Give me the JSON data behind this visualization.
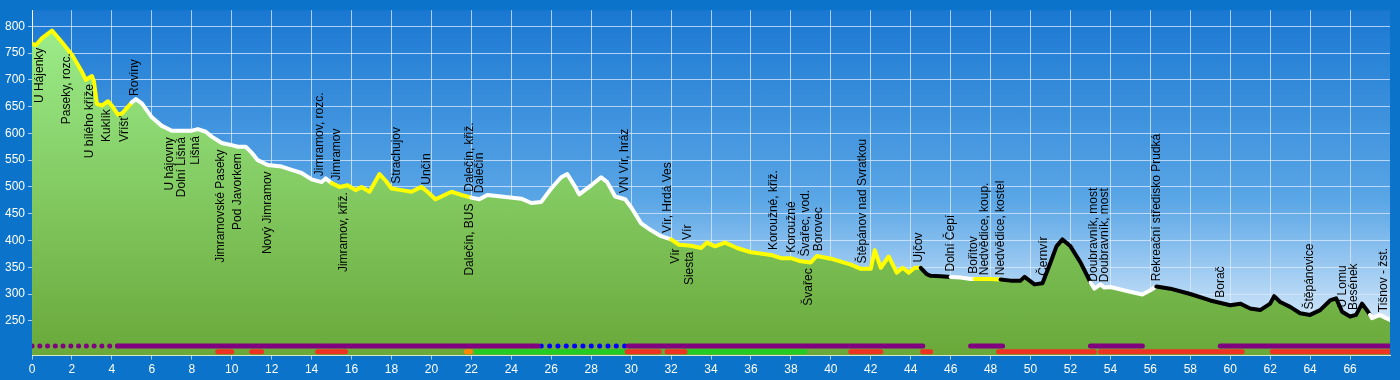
{
  "chart_data": {
    "type": "area",
    "xlim": [
      0,
      68
    ],
    "xticks": [
      0,
      2,
      4,
      6,
      8,
      10,
      12,
      14,
      16,
      18,
      20,
      22,
      24,
      26,
      28,
      30,
      32,
      34,
      36,
      38,
      40,
      42,
      44,
      46,
      48,
      50,
      52,
      54,
      56,
      58,
      60,
      62,
      64,
      66
    ],
    "ylim": [
      185,
      830
    ],
    "yticks": [
      250,
      300,
      350,
      400,
      450,
      500,
      550,
      600,
      650,
      700,
      750,
      800
    ],
    "grid": true,
    "legend": false,
    "series": [
      {
        "color": "#6aa83a",
        "x": [
          0,
          0.2,
          0.5,
          1.0,
          1.5,
          2.0,
          2.5,
          2.7,
          3.0,
          3.1,
          3.25,
          3.5,
          3.8,
          4.0,
          4.3,
          4.5,
          5.0,
          5.2,
          5.5,
          6.0,
          6.5,
          7.0,
          8.0,
          8.3,
          8.7,
          9.0,
          9.5,
          10.0,
          10.3,
          10.7,
          11.0,
          11.3,
          11.8,
          12.5,
          13.0,
          13.5,
          14.0,
          14.5,
          14.7,
          15.0,
          15.4,
          15.8,
          16.2,
          16.5,
          16.9,
          17.4,
          17.7,
          18.0,
          18.5,
          19.0,
          19.5,
          19.8,
          20.2,
          20.5,
          21.0,
          21.5,
          22.0,
          22.4,
          22.8,
          23.5,
          24.5,
          25.0,
          25.5,
          26.0,
          26.5,
          26.8,
          27.2,
          27.4,
          28.0,
          28.5,
          28.8,
          29.2,
          29.7,
          30.0,
          30.5,
          31.0,
          31.5,
          32.0,
          32.4,
          33.0,
          33.5,
          33.8,
          34.2,
          34.7,
          35.3,
          36.0,
          37.0,
          37.5,
          38.0,
          38.5,
          39.0,
          39.3,
          40.0,
          41.0,
          41.5,
          42.0,
          42.2,
          42.5,
          42.9,
          43.3,
          43.6,
          43.9,
          44.2,
          44.5,
          44.8,
          45.0,
          45.5,
          46.0,
          46.5,
          47.0,
          47.2,
          48.0,
          48.5,
          49.0,
          49.5,
          49.7,
          50.2,
          50.6,
          51.0,
          51.3,
          51.6,
          52.0,
          52.5,
          53.0,
          53.2,
          53.5,
          53.7,
          54.0,
          55.0,
          55.6,
          56.0,
          56.3,
          57.0,
          58.0,
          59.0,
          60.0,
          60.5,
          61.0,
          61.5,
          62.0,
          62.2,
          62.5,
          63.0,
          63.5,
          64.0,
          64.5,
          65.0,
          65.3,
          65.6,
          66.0,
          66.3,
          66.6,
          66.9,
          67.0,
          67.1,
          67.5,
          67.8,
          68
        ],
        "values": [
          767,
          765,
          778,
          792,
          770,
          747,
          715,
          700,
          707,
          697,
          655,
          652,
          660,
          652,
          635,
          637,
          658,
          664,
          656,
          630,
          614,
          605,
          605,
          608,
          603,
          594,
          582,
          578,
          575,
          575,
          564,
          550,
          541,
          538,
          532,
          526,
          514,
          509,
          516,
          507,
          500,
          503,
          494,
          500,
          491,
          524,
          512,
          497,
          494,
          491,
          500,
          491,
          477,
          482,
          491,
          485,
          480,
          477,
          485,
          482,
          478,
          470,
          472,
          497,
          518,
          524,
          500,
          486,
          503,
          518,
          509,
          482,
          477,
          462,
          432,
          419,
          408,
          402,
          392,
          390,
          386,
          396,
          389,
          396,
          386,
          378,
          373,
          367,
          367,
          361,
          359,
          371,
          366,
          355,
          347,
          347,
          382,
          349,
          370,
          340,
          349,
          340,
          349,
          349,
          337,
          334,
          333,
          332,
          331,
          328,
          328,
          328,
          327,
          325,
          325,
          332,
          318,
          320,
          359,
          389,
          402,
          389,
          359,
          322,
          310,
          318,
          312,
          313,
          304,
          299,
          307,
          314,
          310,
          300,
          288,
          279,
          282,
          273,
          270,
          282,
          296,
          285,
          276,
          264,
          261,
          270,
          288,
          292,
          267,
          258,
          261,
          282,
          267,
          261,
          255,
          261,
          255,
          252
        ],
        "colors": [
          "#ffff00",
          "#ffff00",
          "#ffff00",
          "#ffff00",
          "#ffff00",
          "#ffff00",
          "#ffff00",
          "#ffff00",
          "#ffff00",
          "#ffff00",
          "#ffff00",
          "#ffff00",
          "#ffff00",
          "#ffff00",
          "#ffff00",
          "#ffff00",
          "#ffffff",
          "#ffffff",
          "#ffffff",
          "#ffffff",
          "#ffffff",
          "#ffffff",
          "#ffffff",
          "#ffffff",
          "#ffffff",
          "#ffffff",
          "#ffffff",
          "#ffffff",
          "#ffffff",
          "#ffffff",
          "#ffffff",
          "#ffffff",
          "#ffffff",
          "#ffffff",
          "#ffffff",
          "#ffffff",
          "#ffffff",
          "#ffffff",
          "#ffffff",
          "#ffff00",
          "#ffff00",
          "#ffff00",
          "#ffff00",
          "#ffff00",
          "#ffff00",
          "#ffff00",
          "#ffff00",
          "#ffff00",
          "#ffff00",
          "#ffff00",
          "#ffff00",
          "#ffff00",
          "#ffff00",
          "#ffff00",
          "#ffff00",
          "#ffff00",
          "#ffffff",
          "#ffffff",
          "#ffffff",
          "#ffffff",
          "#ffffff",
          "#ffffff",
          "#ffffff",
          "#ffffff",
          "#ffffff",
          "#ffffff",
          "#ffffff",
          "#ffffff",
          "#ffffff",
          "#ffffff",
          "#ffffff",
          "#ffffff",
          "#ffffff",
          "#ffffff",
          "#ffffff",
          "#ffffff",
          "#ffffff",
          "#ffff00",
          "#ffff00",
          "#ffff00",
          "#ffff00",
          "#ffff00",
          "#ffff00",
          "#ffff00",
          "#ffff00",
          "#ffff00",
          "#ffff00",
          "#ffff00",
          "#ffff00",
          "#ffff00",
          "#ffff00",
          "#ffff00",
          "#ffff00",
          "#ffff00",
          "#ffff00",
          "#ffff00",
          "#ffff00",
          "#ffff00",
          "#ffff00",
          "#ffff00",
          "#ffff00",
          "#ffff00",
          "#ffff00",
          "#000000",
          "#000000",
          "#000000",
          "#000000",
          "#ffffff",
          "#ffffff",
          "#ffffff",
          "#ffff00",
          "#ffff00",
          "#000000",
          "#000000",
          "#000000",
          "#000000",
          "#000000",
          "#000000",
          "#000000",
          "#000000",
          "#000000",
          "#000000",
          "#000000",
          "#ffffff",
          "#ffffff",
          "#ffffff",
          "#ffffff",
          "#ffffff",
          "#ffffff",
          "#ffffff",
          "#ffffff",
          "#000000",
          "#000000",
          "#000000",
          "#000000",
          "#000000",
          "#000000",
          "#000000",
          "#000000",
          "#000000",
          "#000000",
          "#000000",
          "#000000",
          "#000000",
          "#000000",
          "#000000",
          "#000000",
          "#000000",
          "#000000",
          "#000000",
          "#000000",
          "#000000",
          "#000000",
          "#ffffff",
          "#ffffff",
          "#ffffff",
          "#ffffff",
          "#ffffff"
        ]
      },
      {
        "type": "line",
        "color": "#800080",
        "line_style": "dotted",
        "x": [
          0,
          4.3
        ],
        "values": [
          203,
          203
        ]
      },
      {
        "type": "line",
        "color": "#800080",
        "line_style": "solid",
        "x": [
          4.3,
          14.7,
          14.75,
          14.8,
          25.35,
          27,
          29.85,
          44.6,
          45.8,
          47.0,
          48.6,
          50.8,
          53.0,
          55.6,
          57.5,
          59.5,
          68
        ],
        "values": [
          203,
          203,
          null,
          203,
          203,
          null,
          203,
          203,
          null,
          203,
          203,
          null,
          203,
          203,
          null,
          203,
          203
        ]
      },
      {
        "type": "line",
        "color": "#0000ff",
        "line_style": "dotted",
        "x": [
          25.5,
          29.7
        ],
        "values": [
          203,
          203
        ]
      },
      {
        "type": "line",
        "color": "#ee3322",
        "line_style": "solid",
        "x": [
          9.3,
          10.0,
          10.5,
          11.0,
          11.5,
          12.9,
          14.3,
          15.7,
          22.7,
          29.8,
          31.4,
          31.6,
          31.8,
          32.7,
          36.9,
          41.0,
          42.5,
          43.5,
          44.6,
          45.0,
          46.7,
          48.4,
          53.2,
          53.35,
          53.5,
          60.6,
          61.35,
          62.1,
          68
        ],
        "values": [
          192,
          192,
          null,
          192,
          192,
          null,
          192,
          192,
          null,
          192,
          192,
          null,
          192,
          192,
          null,
          192,
          192,
          null,
          192,
          192,
          null,
          192,
          192,
          null,
          192,
          192,
          null,
          192,
          192
        ]
      },
      {
        "type": "line",
        "color": "#ff8800",
        "line_style": "solid",
        "x": [
          21.75,
          21.95
        ],
        "values": [
          192,
          192
        ]
      },
      {
        "type": "line",
        "color": "#22cc22",
        "line_style": "solid",
        "x": [
          22.25,
          29.8,
          31.2,
          32.7,
          38.7
        ],
        "values": [
          192,
          192,
          null,
          192,
          192
        ]
      }
    ],
    "annotations": [
      {
        "text": "U Hájenky",
        "x": 0.4,
        "y": 760
      },
      {
        "text": "Paseky, rozc.",
        "x": 1.75,
        "y": 750
      },
      {
        "text": "U bílého kříže",
        "x": 2.9,
        "y": 692
      },
      {
        "text": "Kuklík",
        "x": 3.75,
        "y": 645
      },
      {
        "text": "Vříšť",
        "x": 4.65,
        "y": 632
      },
      {
        "text": "Roviny",
        "x": 5.15,
        "y": 670
      },
      {
        "text": "U hájovny",
        "x": 6.9,
        "y": 593
      },
      {
        "text": "Dolní Lišná",
        "x": 7.5,
        "y": 593
      },
      {
        "text": "Lišná",
        "x": 8.2,
        "y": 595
      },
      {
        "text": "Jimramovské Paseky",
        "x": 9.45,
        "y": 570
      },
      {
        "text": "Pod Javorkem",
        "x": 10.3,
        "y": 563
      },
      {
        "text": "Nový Jimramov",
        "x": 11.8,
        "y": 529
      },
      {
        "text": "Jimramov, rozc.",
        "x": 14.4,
        "y": 520
      },
      {
        "text": "Jimramov",
        "x": 15.25,
        "y": 512
      },
      {
        "text": "Jimramov, křiž.",
        "x": 15.6,
        "y": 490
      },
      {
        "text": "Strachujov",
        "x": 18.25,
        "y": 506
      },
      {
        "text": "Unčín",
        "x": 19.75,
        "y": 504
      },
      {
        "text": "Dalečín, křiž.",
        "x": 21.9,
        "y": 491
      },
      {
        "text": "Dalečín",
        "x": 22.4,
        "y": 488
      },
      {
        "text": "Dalečín, BUS",
        "x": 21.9,
        "y": 469
      },
      {
        "text": "VN Vír, hráz",
        "x": 29.7,
        "y": 488
      },
      {
        "text": "Vír, Hrdá Ves",
        "x": 31.85,
        "y": 414
      },
      {
        "text": "Vír",
        "x": 32.85,
        "y": 401
      },
      {
        "text": "Vír",
        "x": 32.25,
        "y": 385
      },
      {
        "text": "Siesta",
        "x": 32.95,
        "y": 379
      },
      {
        "text": "Koroužné, křiž.",
        "x": 37.15,
        "y": 382
      },
      {
        "text": "Koroužné",
        "x": 38.05,
        "y": 377
      },
      {
        "text": "Švařec, vod.",
        "x": 38.75,
        "y": 370
      },
      {
        "text": "Borovec",
        "x": 39.4,
        "y": 380
      },
      {
        "text": "Švařec",
        "x": 38.9,
        "y": 348
      },
      {
        "text": "Štěpánov nad Svratkou",
        "x": 41.6,
        "y": 357
      },
      {
        "text": "Ujčov",
        "x": 44.4,
        "y": 359
      },
      {
        "text": "Dolní Čepí",
        "x": 46.0,
        "y": 342
      },
      {
        "text": "Bořitov",
        "x": 47.15,
        "y": 338
      },
      {
        "text": "Nedvědice, koup.",
        "x": 47.7,
        "y": 335
      },
      {
        "text": "Nedvědice, kostel",
        "x": 48.5,
        "y": 335
      },
      {
        "text": "Černvír",
        "x": 50.65,
        "y": 334
      },
      {
        "text": "Doubravník, most",
        "x": 53.15,
        "y": 323
      },
      {
        "text": "Doubravník, most",
        "x": 53.7,
        "y": 322
      },
      {
        "text": "Rekreační středisko Prudká",
        "x": 56.3,
        "y": 324
      },
      {
        "text": "Borač",
        "x": 59.5,
        "y": 293
      },
      {
        "text": "Štěpánovice",
        "x": 64.0,
        "y": 271
      },
      {
        "text": "U Lomu",
        "x": 65.65,
        "y": 275
      },
      {
        "text": "Besének",
        "x": 66.2,
        "y": 270
      },
      {
        "text": "Tišnov - žst.",
        "x": 67.7,
        "y": 266
      }
    ]
  }
}
